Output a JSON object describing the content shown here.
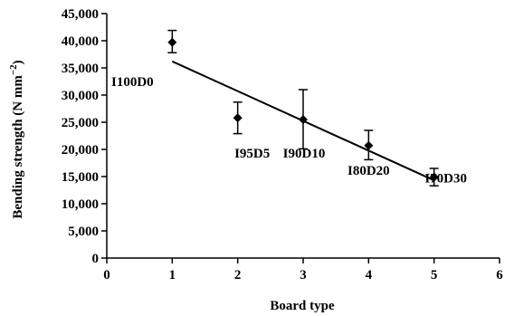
{
  "chart_data": {
    "type": "scatter",
    "xlabel": "Board type",
    "ylabel_main": "Bending strength (N mm",
    "ylabel_sup": "−2",
    "ylabel_close": ")",
    "xlim": [
      0,
      6
    ],
    "ylim": [
      0,
      45000
    ],
    "x_ticks": [
      0,
      1,
      2,
      3,
      4,
      5,
      6
    ],
    "x_tick_labels": [
      "0",
      "1",
      "2",
      "3",
      "4",
      "5",
      "6"
    ],
    "y_ticks": [
      0,
      5000,
      10000,
      15000,
      20000,
      25000,
      30000,
      35000,
      40000,
      45000
    ],
    "y_tick_labels": [
      "0",
      "5,000",
      "10,000",
      "15,000",
      "20,000",
      "25,000",
      "30,000",
      "35,000",
      "40,000",
      "45,000"
    ],
    "points": [
      {
        "label": "I100D0",
        "x": 1,
        "y": 39700,
        "err_low": 37800,
        "err_high": 41900
      },
      {
        "label": "I95D5",
        "x": 2,
        "y": 25800,
        "err_low": 22900,
        "err_high": 28700
      },
      {
        "label": "I90D10",
        "x": 3,
        "y": 25500,
        "err_low": 20100,
        "err_high": 31000
      },
      {
        "label": "I80D20",
        "x": 4,
        "y": 20700,
        "err_low": 18100,
        "err_high": 23500
      },
      {
        "label": "I70D30",
        "x": 5,
        "y": 14900,
        "err_low": 13300,
        "err_high": 16500
      }
    ],
    "trendline": {
      "x": [
        1,
        5
      ],
      "y": [
        36200,
        14300
      ]
    },
    "grid": false,
    "legend": "none",
    "marker": "diamond",
    "color": "#000000"
  }
}
